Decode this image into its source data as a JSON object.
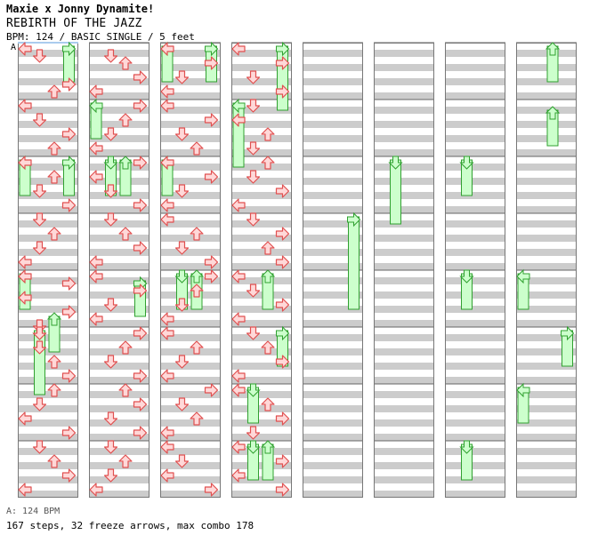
{
  "header": {
    "artist": "Maxie x Jonny Dynamite!",
    "title": "REBIRTH OF THE JAZZ",
    "chart_info": "BPM: 124 / BASIC SINGLE / 5 feet"
  },
  "segment_label": "A",
  "footer": {
    "bpm_legend": "A: 124 BPM",
    "stats": "167 steps, 32 freeze arrows, max combo 178"
  },
  "colors": {
    "arrow_fill": "#ffd8d8",
    "arrow_stroke": "#e05050",
    "freeze_fill": "#ccffcc",
    "freeze_stroke": "#30a030",
    "band_gray": "#cccccc",
    "bpm_highlight": "#aaccee"
  },
  "chart_data": {
    "type": "table",
    "directions": [
      "left",
      "down",
      "up",
      "right"
    ],
    "columns": 8,
    "measures_per_column": 8,
    "steps_per_measure": 8,
    "notes": [
      [
        0,
        0,
        0
      ],
      [
        0,
        1,
        1
      ],
      [
        0,
        5,
        3
      ],
      [
        0,
        6,
        2
      ],
      [
        1,
        0,
        0
      ],
      [
        1,
        2,
        1
      ],
      [
        1,
        4,
        3
      ],
      [
        1,
        6,
        2
      ],
      [
        2,
        0,
        0
      ],
      [
        2,
        2,
        2
      ],
      [
        2,
        4,
        1
      ],
      [
        2,
        6,
        3
      ],
      [
        3,
        0,
        1
      ],
      [
        3,
        2,
        2
      ],
      [
        3,
        4,
        1
      ],
      [
        3,
        6,
        0
      ],
      [
        4,
        0,
        0
      ],
      [
        4,
        1,
        3
      ],
      [
        4,
        3,
        0
      ],
      [
        4,
        5,
        3
      ],
      [
        4,
        7,
        1
      ],
      [
        5,
        0,
        1
      ],
      [
        5,
        2,
        1
      ],
      [
        5,
        4,
        2
      ],
      [
        5,
        6,
        3
      ],
      [
        6,
        0,
        2
      ],
      [
        6,
        2,
        1
      ],
      [
        6,
        4,
        0
      ],
      [
        6,
        6,
        3
      ],
      [
        7,
        0,
        1
      ],
      [
        7,
        2,
        2
      ],
      [
        7,
        4,
        3
      ],
      [
        7,
        6,
        0
      ],
      [
        8,
        1,
        1
      ],
      [
        8,
        2,
        2
      ],
      [
        8,
        4,
        3
      ],
      [
        8,
        6,
        0
      ],
      [
        9,
        0,
        3
      ],
      [
        9,
        2,
        2
      ],
      [
        9,
        4,
        1
      ],
      [
        9,
        6,
        0
      ],
      [
        10,
        0,
        3
      ],
      [
        10,
        2,
        0
      ],
      [
        10,
        4,
        1
      ],
      [
        10,
        6,
        3
      ],
      [
        11,
        0,
        1
      ],
      [
        11,
        2,
        2
      ],
      [
        11,
        4,
        3
      ],
      [
        11,
        6,
        0
      ],
      [
        12,
        0,
        0
      ],
      [
        12,
        2,
        3
      ],
      [
        12,
        4,
        1
      ],
      [
        12,
        6,
        0
      ],
      [
        13,
        0,
        3
      ],
      [
        13,
        2,
        2
      ],
      [
        13,
        4,
        1
      ],
      [
        13,
        6,
        3
      ],
      [
        14,
        0,
        2
      ],
      [
        14,
        2,
        3
      ],
      [
        14,
        4,
        1
      ],
      [
        14,
        6,
        3
      ],
      [
        15,
        0,
        1
      ],
      [
        15,
        2,
        2
      ],
      [
        15,
        4,
        1
      ],
      [
        15,
        6,
        0
      ],
      [
        16,
        0,
        0
      ],
      [
        16,
        2,
        3
      ],
      [
        16,
        4,
        1
      ],
      [
        16,
        6,
        0
      ],
      [
        17,
        0,
        0
      ],
      [
        17,
        2,
        3
      ],
      [
        17,
        4,
        1
      ],
      [
        17,
        6,
        2
      ],
      [
        18,
        0,
        0
      ],
      [
        18,
        2,
        3
      ],
      [
        18,
        4,
        1
      ],
      [
        18,
        6,
        0
      ],
      [
        19,
        0,
        0
      ],
      [
        19,
        2,
        2
      ],
      [
        19,
        4,
        1
      ],
      [
        19,
        6,
        3
      ],
      [
        20,
        0,
        3
      ],
      [
        20,
        2,
        2
      ],
      [
        20,
        4,
        1
      ],
      [
        20,
        6,
        0
      ],
      [
        21,
        0,
        0
      ],
      [
        21,
        2,
        2
      ],
      [
        21,
        4,
        1
      ],
      [
        21,
        6,
        0
      ],
      [
        22,
        0,
        3
      ],
      [
        22,
        2,
        1
      ],
      [
        22,
        4,
        2
      ],
      [
        22,
        6,
        0
      ],
      [
        23,
        0,
        0
      ],
      [
        23,
        2,
        1
      ],
      [
        23,
        4,
        0
      ],
      [
        23,
        6,
        3
      ],
      [
        24,
        0,
        0
      ],
      [
        24,
        2,
        3
      ],
      [
        24,
        4,
        1
      ],
      [
        24,
        6,
        3
      ],
      [
        25,
        0,
        1
      ],
      [
        25,
        2,
        0
      ],
      [
        25,
        4,
        2
      ],
      [
        25,
        6,
        1
      ],
      [
        26,
        0,
        2
      ],
      [
        26,
        2,
        1
      ],
      [
        26,
        4,
        3
      ],
      [
        26,
        6,
        0
      ],
      [
        27,
        0,
        1
      ],
      [
        27,
        2,
        3
      ],
      [
        27,
        4,
        2
      ],
      [
        27,
        6,
        3
      ],
      [
        28,
        0,
        0
      ],
      [
        28,
        2,
        1
      ],
      [
        28,
        4,
        3
      ],
      [
        28,
        6,
        0
      ],
      [
        29,
        0,
        1
      ],
      [
        29,
        2,
        2
      ],
      [
        29,
        4,
        3
      ],
      [
        29,
        6,
        0
      ],
      [
        30,
        0,
        0
      ],
      [
        30,
        2,
        2
      ],
      [
        30,
        4,
        3
      ],
      [
        30,
        6,
        1
      ],
      [
        31,
        0,
        0
      ],
      [
        31,
        2,
        3
      ],
      [
        31,
        4,
        0
      ],
      [
        31,
        6,
        3
      ]
    ],
    "freezes": [
      [
        0,
        0,
        1,
        3
      ],
      [
        4,
        0,
        1,
        0
      ],
      [
        4,
        6,
        1,
        2
      ],
      [
        5,
        0,
        2,
        1
      ],
      [
        9,
        0,
        1,
        0
      ],
      [
        16,
        0,
        1,
        3
      ],
      [
        16,
        0,
        1,
        0
      ],
      [
        24,
        0,
        2,
        3
      ],
      [
        25,
        0,
        2,
        0
      ],
      [
        2,
        0,
        1,
        0
      ],
      [
        2,
        0,
        1,
        3
      ],
      [
        10,
        0,
        1,
        1
      ],
      [
        10,
        0,
        1,
        2
      ],
      [
        12,
        1,
        1,
        3
      ],
      [
        18,
        0,
        1,
        0
      ],
      [
        20,
        0,
        1,
        1
      ],
      [
        20,
        0,
        1,
        2
      ],
      [
        28,
        0,
        1,
        2
      ],
      [
        29,
        0,
        1,
        3
      ],
      [
        30,
        0,
        1,
        1
      ],
      [
        31,
        0,
        1,
        1
      ],
      [
        31,
        0,
        1,
        2
      ],
      [
        35,
        0,
        3,
        3
      ],
      [
        42,
        0,
        2,
        1
      ],
      [
        50,
        0,
        1,
        1
      ],
      [
        52,
        0,
        1,
        1
      ],
      [
        55,
        0,
        1,
        1
      ],
      [
        56,
        0,
        1,
        2
      ],
      [
        57,
        1,
        1,
        2
      ],
      [
        60,
        0,
        1,
        0
      ],
      [
        61,
        0,
        1,
        3
      ],
      [
        62,
        0,
        1,
        0
      ]
    ],
    "bpm_changes": [
      {
        "segment": "A",
        "bpm": 124
      }
    ]
  }
}
